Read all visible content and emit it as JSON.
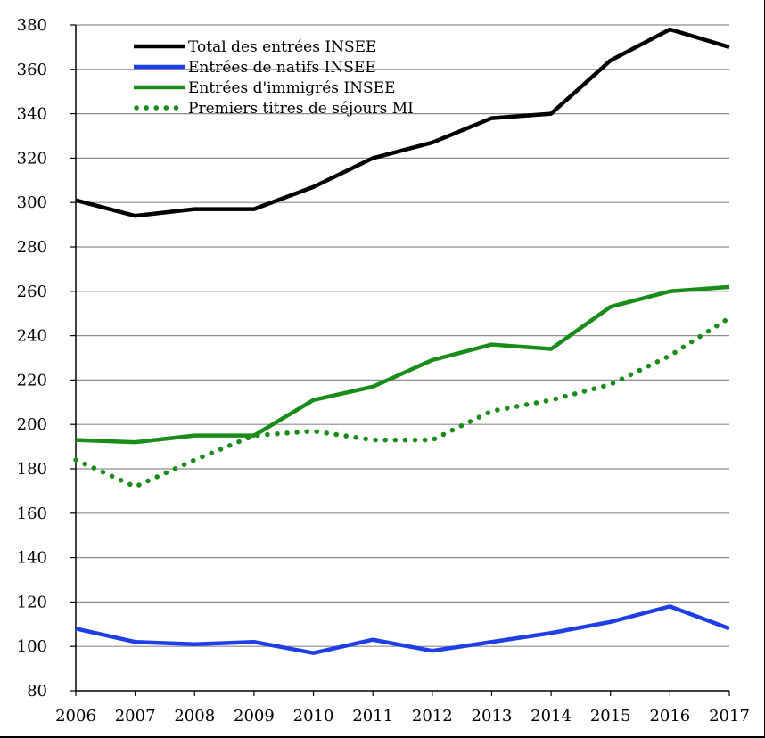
{
  "chart_data": {
    "type": "line",
    "title": "",
    "xlabel": "",
    "ylabel": "",
    "x": [
      2006,
      2007,
      2008,
      2009,
      2010,
      2011,
      2012,
      2013,
      2014,
      2015,
      2016,
      2017
    ],
    "ylim": [
      80,
      380
    ],
    "yticks": [
      80,
      100,
      120,
      140,
      160,
      180,
      200,
      220,
      240,
      260,
      280,
      300,
      320,
      340,
      360,
      380
    ],
    "grid": true,
    "legend_position": "top-left",
    "series": [
      {
        "name": "Total des entrées INSEE",
        "color": "#000000",
        "style": "solid",
        "values": [
          301,
          294,
          297,
          297,
          307,
          320,
          327,
          338,
          340,
          364,
          378,
          370
        ]
      },
      {
        "name": "Entrées de natifs INSEE",
        "color": "#1f3fe6",
        "style": "solid",
        "values": [
          108,
          102,
          101,
          102,
          97,
          103,
          98,
          102,
          106,
          111,
          118,
          108
        ]
      },
      {
        "name": "Entrées d'immigrés INSEE",
        "color": "#1a8c1a",
        "style": "solid",
        "values": [
          193,
          192,
          195,
          195,
          211,
          217,
          229,
          236,
          234,
          253,
          260,
          262
        ]
      },
      {
        "name": "Premiers titres de séjours MI",
        "color": "#1a8c1a",
        "style": "dotted",
        "values": [
          184,
          172,
          184,
          195,
          197,
          193,
          193,
          206,
          211,
          218,
          231,
          248
        ]
      }
    ]
  }
}
